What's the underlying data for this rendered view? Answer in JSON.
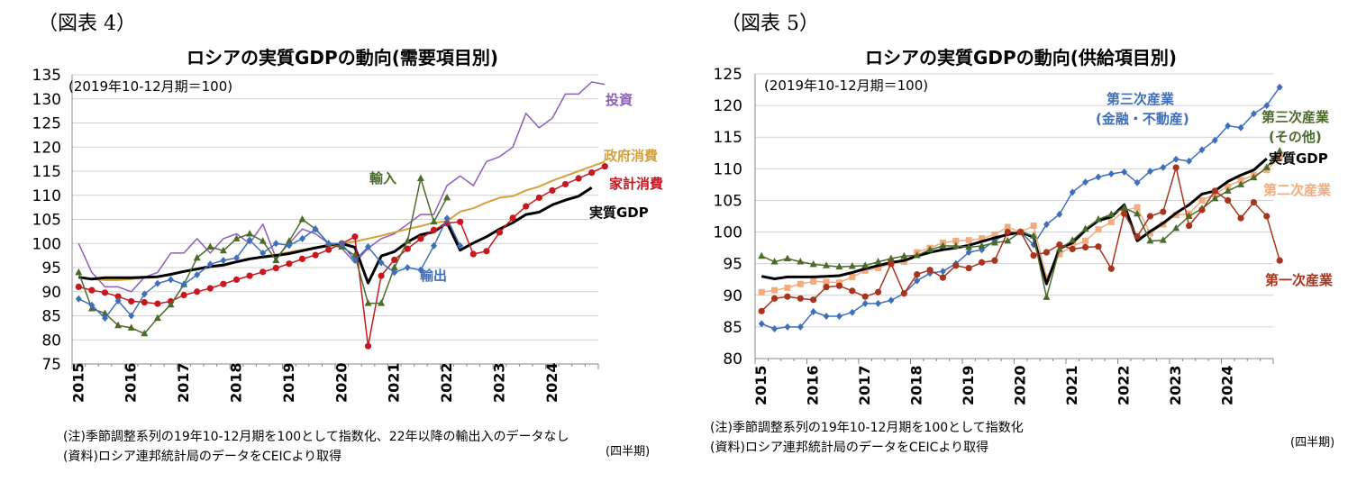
{
  "panels": [
    {
      "figure_label": "（図表 4）",
      "notes": [
        "(注)季節調整系列の19年10-12月期を100として指数化、22年以降の輸出入のデータなし",
        "(資料)ロシア連邦統計局のデータをCEICより取得"
      ],
      "unit_label": "(四半期)"
    },
    {
      "figure_label": "（図表 5）",
      "notes": [
        "(注)季節調整系列の19年10-12月期を100として指数化",
        "(資料)ロシア連邦統計局のデータをCEICより取得"
      ],
      "unit_label": "(四半期)"
    }
  ],
  "chart_data": [
    {
      "type": "line",
      "title": "ロシアの実質GDPの動向(需要項目別)",
      "base_note": "(2019年10-12月期＝100)",
      "ylim": [
        75,
        135
      ],
      "yticks": [
        75,
        80,
        85,
        90,
        95,
        100,
        105,
        110,
        115,
        120,
        125,
        130,
        135
      ],
      "x_start": 2015,
      "x_labels": [
        "2015",
        "2016",
        "2017",
        "2018",
        "2019",
        "2020",
        "2021",
        "2022",
        "2023",
        "2024"
      ],
      "grid": true,
      "series": [
        {
          "name": "投資",
          "color": "#8e5db8",
          "marker": "none",
          "width": 1.5,
          "values": [
            100,
            94,
            91,
            91,
            90,
            93,
            94,
            98,
            98,
            101,
            98,
            101,
            102,
            100,
            104,
            97,
            100,
            103,
            102,
            100,
            99,
            96,
            99,
            101,
            102,
            104,
            106,
            106,
            112,
            114,
            112,
            117,
            118,
            120,
            127,
            124,
            126,
            131,
            131,
            133.5,
            133
          ]
        },
        {
          "name": "政府消費",
          "color": "#d4a13b",
          "marker": "none",
          "width": 2,
          "values": [
            93,
            92.6,
            92.4,
            92.4,
            92.6,
            92.9,
            93.2,
            93.6,
            94.2,
            94.8,
            95.2,
            95.7,
            96.2,
            96.8,
            97.3,
            97.7,
            98.2,
            98.7,
            99.2,
            99.6,
            100,
            100.4,
            101,
            101.6,
            102.3,
            103,
            103.6,
            104.3,
            104.6,
            106.6,
            107.3,
            108.5,
            109.5,
            109.8,
            111,
            111.8,
            113,
            114,
            115,
            116,
            117
          ]
        },
        {
          "name": "実質GDP",
          "color": "#000000",
          "marker": "none",
          "width": 3,
          "values": [
            93,
            92.6,
            92.9,
            92.9,
            92.9,
            93,
            93.1,
            93.6,
            94.2,
            94.7,
            95.2,
            95.5,
            96.2,
            96.8,
            97.2,
            97.5,
            97.9,
            98.5,
            99.1,
            99.6,
            100,
            99.2,
            91.8,
            97.4,
            98.3,
            100.3,
            101.8,
            102.4,
            104.3,
            98.6,
            100.1,
            101.4,
            103,
            104.3,
            106,
            106.5,
            108,
            109,
            109.8,
            111.6
          ]
        },
        {
          "name": "家計消費",
          "color": "#c8171f",
          "marker": "circle",
          "width": 1.5,
          "values": [
            91,
            90.3,
            89.8,
            89,
            88,
            87.8,
            87.5,
            88,
            89.3,
            90,
            90.7,
            91.6,
            92.5,
            93.3,
            94.1,
            94.9,
            95.8,
            96.8,
            97.6,
            98.7,
            100,
            101.4,
            78.7,
            93.3,
            96.6,
            98.9,
            101,
            102.8,
            104.2,
            104.5,
            97.8,
            98.4,
            102.3,
            105.3,
            107.7,
            109.5,
            111,
            112.3,
            113.5,
            114.7,
            116
          ]
        },
        {
          "name": "輸入",
          "color": "#4a6b2a",
          "marker": "triangle",
          "width": 1.5,
          "values": [
            94,
            86.5,
            85.5,
            83,
            82.5,
            81.3,
            84.5,
            87.3,
            91.5,
            97,
            99.3,
            98.5,
            101,
            102,
            100.5,
            96.5,
            100.5,
            105,
            103,
            100,
            99.3,
            97.5,
            87.6,
            87.6,
            95,
            100.5,
            113.5,
            104.5,
            109.5
          ]
        },
        {
          "name": "輸出",
          "color": "#3f6fbb",
          "marker": "diamond",
          "width": 1.5,
          "values": [
            88.5,
            87.2,
            84.5,
            88.1,
            85,
            89.5,
            91.7,
            92.5,
            91.5,
            93.5,
            95.7,
            96.5,
            97,
            100.7,
            98,
            100,
            99.6,
            101,
            103,
            100,
            100,
            96.5,
            99.3,
            96,
            94,
            95,
            94.5,
            99.5,
            105.2,
            99.5
          ]
        }
      ],
      "annotations": [
        "投資",
        "政府消費",
        "家計消費",
        "実質GDP",
        "輸入",
        "輸出"
      ]
    },
    {
      "type": "line",
      "title": "ロシアの実質GDPの動向(供給項目別)",
      "base_note": "(2019年10-12月期＝100)",
      "ylim": [
        80,
        125
      ],
      "yticks": [
        80,
        85,
        90,
        95,
        100,
        105,
        110,
        115,
        120,
        125
      ],
      "x_start": 2015,
      "x_labels": [
        "2015",
        "2016",
        "2017",
        "2018",
        "2019",
        "2020",
        "2021",
        "2022",
        "2023",
        "2024"
      ],
      "grid": true,
      "series": [
        {
          "name": "第三次産業（金融・不動産）",
          "color": "#3f6fbb",
          "marker": "diamond",
          "width": 1.5,
          "values": [
            85.5,
            84.7,
            85,
            85,
            87.4,
            86.7,
            86.7,
            87.3,
            88.7,
            88.7,
            89.2,
            90.3,
            92.3,
            93.5,
            93.8,
            95,
            96.8,
            97.2,
            98.6,
            99.9,
            100,
            98,
            101.2,
            102.8,
            106.3,
            107.9,
            108.7,
            109.2,
            109.5,
            107.8,
            109.6,
            110.2,
            111.5,
            111.2,
            113,
            114.5,
            116.8,
            116.5,
            118.7,
            120,
            122.9
          ]
        },
        {
          "name": "第二次産業",
          "color": "#f2aa7e",
          "marker": "square",
          "width": 1.5,
          "values": [
            90.5,
            90.8,
            91.2,
            91.8,
            92.2,
            92.1,
            92,
            92.9,
            93.9,
            94.3,
            95,
            95.3,
            96.8,
            97.5,
            98.3,
            98.6,
            98.7,
            99,
            99.6,
            100.8,
            100,
            101,
            92.8,
            96.5,
            97.8,
            98.6,
            100.4,
            101.6,
            103.4,
            103.9,
            99.8,
            101.2,
            102.7,
            102.9,
            105,
            106,
            107.2,
            108.2,
            109,
            109.8,
            111.8
          ]
        },
        {
          "name": "実質GDP",
          "color": "#000000",
          "marker": "none",
          "width": 3,
          "values": [
            93,
            92.6,
            92.9,
            92.9,
            92.9,
            93,
            93.1,
            93.6,
            94.2,
            94.7,
            95.2,
            95.5,
            96.2,
            96.8,
            97.2,
            97.5,
            97.9,
            98.5,
            99.1,
            99.6,
            100,
            99.2,
            91.8,
            97.4,
            98.3,
            100.3,
            101.8,
            102.4,
            104.3,
            98.6,
            100.1,
            101.4,
            103,
            104.3,
            106,
            106.5,
            108,
            109,
            109.8,
            111.6
          ]
        },
        {
          "name": "第三次産業（その他）",
          "color": "#4a6b2a",
          "marker": "triangle",
          "width": 1.5,
          "values": [
            96.2,
            95.3,
            95.8,
            95.3,
            94.9,
            94.7,
            94.5,
            94.6,
            94.7,
            95.3,
            95.8,
            96.2,
            96.3,
            97.2,
            97.8,
            97.8,
            97.6,
            97.8,
            98.3,
            98.6,
            100,
            99.4,
            89.7,
            97.3,
            98.7,
            100.5,
            102,
            102.8,
            103.8,
            102.9,
            98.6,
            98.7,
            100.6,
            102.5,
            103.7,
            105.3,
            106.5,
            107.5,
            108.6,
            110.2,
            112.8
          ]
        },
        {
          "name": "第一次産業",
          "color": "#a8341e",
          "marker": "circle",
          "width": 1.5,
          "values": [
            87.5,
            89.5,
            89.8,
            89.5,
            89.3,
            91.3,
            91.5,
            90.7,
            89.8,
            90.5,
            95,
            90.3,
            93.3,
            94,
            92.8,
            94.7,
            94.3,
            95.2,
            95.5,
            100,
            100,
            96.3,
            96.8,
            98,
            97.3,
            97.6,
            97.7,
            94.2,
            102.9,
            99.3,
            102.5,
            103.2,
            110.2,
            101,
            103.5,
            106.5,
            105,
            102.2,
            104.7,
            102.5,
            95.5
          ]
        }
      ],
      "annotations": [
        "第三次産業",
        "(金融・不動産)",
        "第三次産業",
        "(その他)",
        "実質GDP",
        "第二次産業",
        "第一次産業"
      ]
    }
  ]
}
